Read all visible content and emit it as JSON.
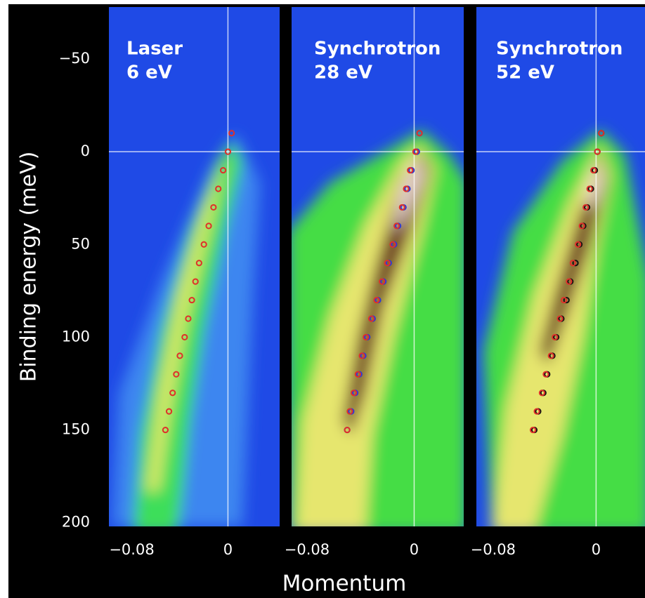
{
  "chart_data": [
    {
      "type": "scatter",
      "label_lines": [
        "Laser",
        "6 eV"
      ],
      "y_label": "Binding energy (meV)",
      "ylim": [
        -78,
        202
      ],
      "y_inverted": true,
      "yticks": [
        {
          "value": -50,
          "label": "−50"
        },
        0,
        50,
        100,
        150,
        200
      ],
      "xlim": [
        -0.099,
        0.043
      ],
      "xticks": [
        {
          "value": -0.08,
          "label": "−0.08"
        },
        0
      ],
      "zero_lines": true,
      "series": [
        {
          "color": "#e0302a",
          "x": [
            0.003,
            0,
            -0.004,
            -0.008,
            -0.012,
            -0.016,
            -0.02,
            -0.024,
            -0.027,
            -0.03,
            -0.033,
            -0.036,
            -0.04,
            -0.043,
            -0.046,
            -0.049,
            -0.052
          ],
          "values": [
            -10,
            0,
            10,
            20,
            30,
            40,
            50,
            60,
            70,
            80,
            90,
            100,
            110,
            120,
            130,
            140,
            150
          ]
        }
      ]
    },
    {
      "type": "scatter",
      "label_lines": [
        "Synchrotron",
        "28 eV"
      ],
      "x_label": "Momentum",
      "ylim": [
        -78,
        202
      ],
      "y_inverted": true,
      "xlim": [
        -0.0915,
        0.037
      ],
      "xticks": [
        {
          "value": -0.08,
          "label": "−0.08"
        },
        0
      ],
      "zero_lines": true,
      "series": [
        {
          "color": "#2a3ad8",
          "x": [
            0.004,
            0.002,
            -0.002,
            -0.005,
            -0.008,
            -0.012,
            -0.015,
            -0.019,
            -0.023,
            -0.027,
            -0.031,
            -0.035,
            -0.038,
            -0.041,
            -0.044,
            -0.047,
            -0.05
          ],
          "values": [
            -10,
            0,
            10,
            20,
            30,
            40,
            50,
            60,
            70,
            80,
            90,
            100,
            110,
            120,
            130,
            140,
            150
          ]
        },
        {
          "color": "#e0302a",
          "x": [
            0.004,
            0.001,
            -0.003,
            -0.006,
            -0.009,
            -0.013,
            -0.016,
            -0.02,
            -0.024,
            -0.028,
            -0.032,
            -0.036,
            -0.039,
            -0.042,
            -0.045,
            -0.048,
            -0.05
          ],
          "values": [
            -10,
            0,
            10,
            20,
            30,
            40,
            50,
            60,
            70,
            80,
            90,
            100,
            110,
            120,
            130,
            140,
            150
          ]
        }
      ]
    },
    {
      "type": "scatter",
      "label_lines": [
        "Synchrotron",
        "52 eV"
      ],
      "ylim": [
        -78,
        202
      ],
      "y_inverted": true,
      "xlim": [
        -0.093,
        0.038
      ],
      "xticks": [
        {
          "value": -0.08,
          "label": "−0.08"
        },
        0
      ],
      "zero_lines": true,
      "series": [
        {
          "color": "#111111",
          "x": [
            0.004,
            0.001,
            -0.001,
            -0.004,
            -0.007,
            -0.01,
            -0.013,
            -0.016,
            -0.02,
            -0.023,
            -0.027,
            -0.031,
            -0.034,
            -0.038,
            -0.041,
            -0.045,
            -0.048
          ],
          "values": [
            -10,
            0,
            10,
            20,
            30,
            40,
            50,
            60,
            70,
            80,
            90,
            100,
            110,
            120,
            130,
            140,
            150
          ]
        },
        {
          "color": "#e0302a",
          "x": [
            0.004,
            0.001,
            -0.002,
            -0.005,
            -0.008,
            -0.011,
            -0.014,
            -0.018,
            -0.021,
            -0.025,
            -0.028,
            -0.032,
            -0.035,
            -0.039,
            -0.042,
            -0.046,
            -0.049
          ],
          "values": [
            -10,
            0,
            10,
            20,
            30,
            40,
            50,
            60,
            70,
            80,
            90,
            100,
            110,
            120,
            130,
            140,
            150
          ]
        }
      ]
    }
  ]
}
